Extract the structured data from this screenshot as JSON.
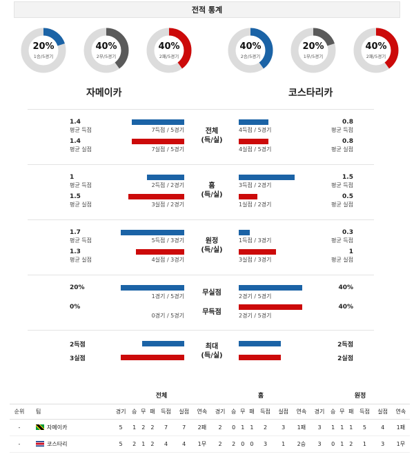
{
  "header": {
    "title": "전적 통계"
  },
  "colors": {
    "blue": "#1b63a6",
    "red": "#cc0a0a",
    "gray": "#5a5a5a",
    "track": "#dcdcdc"
  },
  "donuts": [
    {
      "pct": "20%",
      "sub": "1승/5경기",
      "fraction": 0.2,
      "color": "#1b63a6"
    },
    {
      "pct": "40%",
      "sub": "2무/5경기",
      "fraction": 0.4,
      "color": "#5a5a5a"
    },
    {
      "pct": "40%",
      "sub": "2패/5경기",
      "fraction": 0.4,
      "color": "#cc0a0a"
    },
    {
      "pct": "40%",
      "sub": "2승/5경기",
      "fraction": 0.4,
      "color": "#1b63a6"
    },
    {
      "pct": "20%",
      "sub": "1무/5경기",
      "fraction": 0.2,
      "color": "#5a5a5a"
    },
    {
      "pct": "40%",
      "sub": "2패/5경기",
      "fraction": 0.4,
      "color": "#cc0a0a"
    }
  ],
  "teams": {
    "home": "자메이카",
    "away": "코스타리카"
  },
  "sections": {
    "total": {
      "title1": "전체",
      "title2": "(득/실)",
      "home": [
        {
          "value": "1.4",
          "label": "평균 득점",
          "caption": "7득점 / 5경기",
          "bar": 1.4
        },
        {
          "value": "1.4",
          "label": "평균 실점",
          "caption": "7실점 / 5경기",
          "bar": 1.4
        }
      ],
      "away": [
        {
          "value": "0.8",
          "label": "평균 득점",
          "caption": "4득점 / 5경기",
          "bar": 0.8
        },
        {
          "value": "0.8",
          "label": "평균 실점",
          "caption": "4실점 / 5경기",
          "bar": 0.8
        }
      ]
    },
    "home": {
      "title1": "홈",
      "title2": "(득/실)",
      "home": [
        {
          "value": "1",
          "label": "평균 득점",
          "caption": "2득점 / 2경기",
          "bar": 1
        },
        {
          "value": "1.5",
          "label": "평균 실점",
          "caption": "3실점 / 2경기",
          "bar": 1.5
        }
      ],
      "away": [
        {
          "value": "1.5",
          "label": "평균 득점",
          "caption": "3득점 / 2경기",
          "bar": 1.5
        },
        {
          "value": "0.5",
          "label": "평균 실점",
          "caption": "1실점 / 2경기",
          "bar": 0.5
        }
      ]
    },
    "away": {
      "title1": "원정",
      "title2": "(득/실)",
      "home": [
        {
          "value": "1.7",
          "label": "평균 득점",
          "caption": "5득점 / 3경기",
          "bar": 1.7
        },
        {
          "value": "1.3",
          "label": "평균 실점",
          "caption": "4실점 / 3경기",
          "bar": 1.3
        }
      ],
      "away": [
        {
          "value": "0.3",
          "label": "평균 득점",
          "caption": "1득점 / 3경기",
          "bar": 0.3
        },
        {
          "value": "1",
          "label": "평균 실점",
          "caption": "3실점 / 3경기",
          "bar": 1
        }
      ]
    },
    "clean": {
      "t1": "무실점",
      "t2": "무득점",
      "home": [
        {
          "value": "20%",
          "caption": "1경기 / 5경기",
          "bar": 0.2
        },
        {
          "value": "0%",
          "caption": "0경기 / 5경기",
          "bar": 0
        }
      ],
      "away": [
        {
          "value": "40%",
          "caption": "2경기 / 5경기",
          "bar": 0.4
        },
        {
          "value": "40%",
          "caption": "2경기 / 5경기",
          "bar": 0.4
        }
      ]
    },
    "max": {
      "title1": "최대",
      "title2": "(득/실)",
      "home": [
        {
          "value": "2득점",
          "bar": 2
        },
        {
          "value": "3실점",
          "bar": 3
        }
      ],
      "away": [
        {
          "value": "2득점",
          "bar": 2
        },
        {
          "value": "2실점",
          "bar": 2
        }
      ]
    }
  },
  "table": {
    "groups": [
      "전체",
      "홈",
      "원정"
    ],
    "rank_header": "순위",
    "team_header": "팀",
    "sub_headers": [
      "경기",
      "승",
      "무",
      "패",
      "득점",
      "실점",
      "연속"
    ],
    "rows": [
      {
        "rank": "-",
        "team": "자메이카",
        "flag": "jamaica-flag",
        "total": [
          "5",
          "1",
          "2",
          "2",
          "7",
          "7",
          "2패"
        ],
        "home": [
          "2",
          "0",
          "1",
          "1",
          "2",
          "3",
          "1패"
        ],
        "away": [
          "3",
          "1",
          "1",
          "1",
          "5",
          "4",
          "1패"
        ]
      },
      {
        "rank": "-",
        "team": "코스타리",
        "flag": "costa-rica-flag",
        "total": [
          "5",
          "2",
          "1",
          "2",
          "4",
          "4",
          "1무"
        ],
        "home": [
          "2",
          "2",
          "0",
          "0",
          "3",
          "1",
          "2승"
        ],
        "away": [
          "3",
          "0",
          "1",
          "2",
          "1",
          "3",
          "1무"
        ]
      }
    ]
  }
}
